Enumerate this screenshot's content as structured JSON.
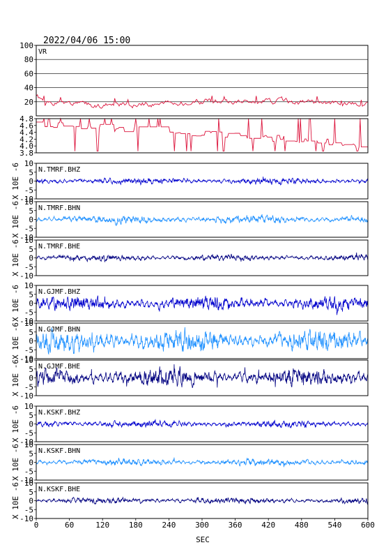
{
  "title": "2022/04/06 15:00",
  "xlabel": "SEC",
  "x_ticks": [
    "0",
    "60",
    "120",
    "180",
    "240",
    "300",
    "360",
    "420",
    "480",
    "540",
    "600"
  ],
  "chart_data": [
    {
      "type": "line",
      "name": "VR",
      "xlim": [
        0,
        600
      ],
      "ylim": [
        0,
        100
      ],
      "yticks": [
        "100",
        "80",
        "60",
        "40",
        "20"
      ],
      "grid": true,
      "color": "#dc143c",
      "base": 18,
      "amp": 3,
      "mode": "vr",
      "seed": 1
    },
    {
      "type": "line",
      "name": "",
      "xlim": [
        0,
        600
      ],
      "ylim": [
        3.8,
        4.8
      ],
      "yticks": [
        "4.8",
        "4.6",
        "4.4",
        "4.2",
        "4.0",
        "3.8"
      ],
      "grid": false,
      "color": "#dc143c",
      "base": 4.4,
      "amp": 0.1,
      "mode": "mag",
      "seed": 2
    },
    {
      "type": "line",
      "name": "N.TMRF.BHZ",
      "ylabel": "X 10E -6",
      "xlim": [
        0,
        600
      ],
      "ylim": [
        -10,
        10
      ],
      "yticks": [
        "10",
        "5",
        "0",
        "-5",
        "-10"
      ],
      "color": "#0000cd",
      "amp": 0.9,
      "mode": "wave",
      "seed": 3
    },
    {
      "type": "line",
      "name": "N.TMRF.BHN",
      "ylabel": "X 10E -6",
      "xlim": [
        0,
        600
      ],
      "ylim": [
        -10,
        10
      ],
      "yticks": [
        "10",
        "5",
        "0",
        "-5",
        "-10"
      ],
      "color": "#1e90ff",
      "amp": 1.1,
      "mode": "wave",
      "seed": 4
    },
    {
      "type": "line",
      "name": "N.TMRF.BHE",
      "ylabel": "X 10E -6",
      "xlim": [
        0,
        600
      ],
      "ylim": [
        -10,
        10
      ],
      "yticks": [
        "10",
        "5",
        "0",
        "-5",
        "-10"
      ],
      "color": "#000080",
      "amp": 0.9,
      "mode": "wave",
      "seed": 5
    },
    {
      "type": "line",
      "name": "N.GJMF.BHZ",
      "ylabel": "X 10E -6",
      "xlim": [
        0,
        600
      ],
      "ylim": [
        -10,
        10
      ],
      "yticks": [
        "10",
        "5",
        "0",
        "-5",
        "-10"
      ],
      "color": "#0000cd",
      "amp": 2.0,
      "mode": "wave",
      "seed": 6
    },
    {
      "type": "line",
      "name": "N.GJMF.BHN",
      "ylabel": "X 10E -6",
      "xlim": [
        0,
        600
      ],
      "ylim": [
        -10,
        10
      ],
      "yticks": [
        "10",
        "5",
        "0",
        "-5",
        "-10"
      ],
      "color": "#1e90ff",
      "amp": 3.0,
      "mode": "wave",
      "seed": 7
    },
    {
      "type": "line",
      "name": "N.GJMF.BHE",
      "ylabel": "X 10E -6",
      "xlim": [
        0,
        600
      ],
      "ylim": [
        -10,
        10
      ],
      "yticks": [
        "10",
        "5",
        "0",
        "-5",
        "-10"
      ],
      "color": "#000080",
      "amp": 2.6,
      "mode": "wave",
      "seed": 8
    },
    {
      "type": "line",
      "name": "N.KSKF.BHZ",
      "ylabel": "X 10E -6",
      "xlim": [
        0,
        600
      ],
      "ylim": [
        -10,
        10
      ],
      "yticks": [
        "10",
        "5",
        "0",
        "-5",
        "-10"
      ],
      "color": "#0000cd",
      "amp": 1.0,
      "mode": "wave",
      "seed": 9
    },
    {
      "type": "line",
      "name": "N.KSKF.BHN",
      "ylabel": "X 10E -6",
      "xlim": [
        0,
        600
      ],
      "ylim": [
        -10,
        10
      ],
      "yticks": [
        "10",
        "5",
        "0",
        "-5",
        "-10"
      ],
      "color": "#1e90ff",
      "amp": 1.0,
      "mode": "wave",
      "seed": 10
    },
    {
      "type": "line",
      "name": "N.KSKF.BHE",
      "ylabel": "X 10E -6",
      "xlim": [
        0,
        600
      ],
      "ylim": [
        -10,
        10
      ],
      "yticks": [
        "10",
        "5",
        "0",
        "-5",
        "-10"
      ],
      "color": "#000080",
      "amp": 0.9,
      "mode": "wave",
      "seed": 11
    }
  ]
}
